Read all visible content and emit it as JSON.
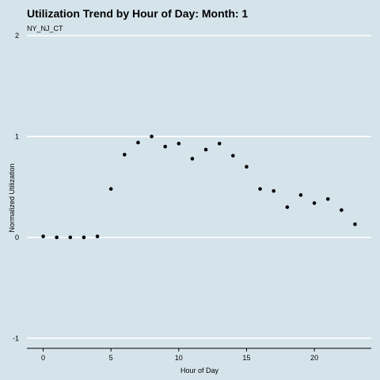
{
  "chart_data": {
    "type": "scatter",
    "title": "Utilization Trend by Hour of Day: Month: 1",
    "subtitle": "NY_NJ_CT",
    "xlabel": "Hour of Day",
    "ylabel": "Normalized Utilization",
    "xlim": [
      -1.2,
      24.2
    ],
    "ylim": [
      -1.1,
      2
    ],
    "x_ticks": [
      0,
      5,
      10,
      15,
      20
    ],
    "y_ticks": [
      -1,
      0,
      1,
      2
    ],
    "grid": "horizontal",
    "colors": {
      "background": "#d5e4eb",
      "gridline": "#ffffff",
      "point": "#000000",
      "axis": "#000000"
    },
    "x": [
      0,
      1,
      2,
      3,
      4,
      5,
      6,
      7,
      8,
      9,
      10,
      11,
      12,
      13,
      14,
      15,
      16,
      17,
      18,
      19,
      20,
      21,
      22,
      23
    ],
    "y": [
      0.01,
      0.0,
      0.0,
      0.0,
      0.01,
      0.48,
      0.82,
      0.94,
      1.0,
      0.9,
      0.93,
      0.78,
      0.87,
      0.93,
      0.81,
      0.7,
      0.48,
      0.46,
      0.3,
      0.42,
      0.34,
      0.38,
      0.27,
      0.13
    ]
  }
}
